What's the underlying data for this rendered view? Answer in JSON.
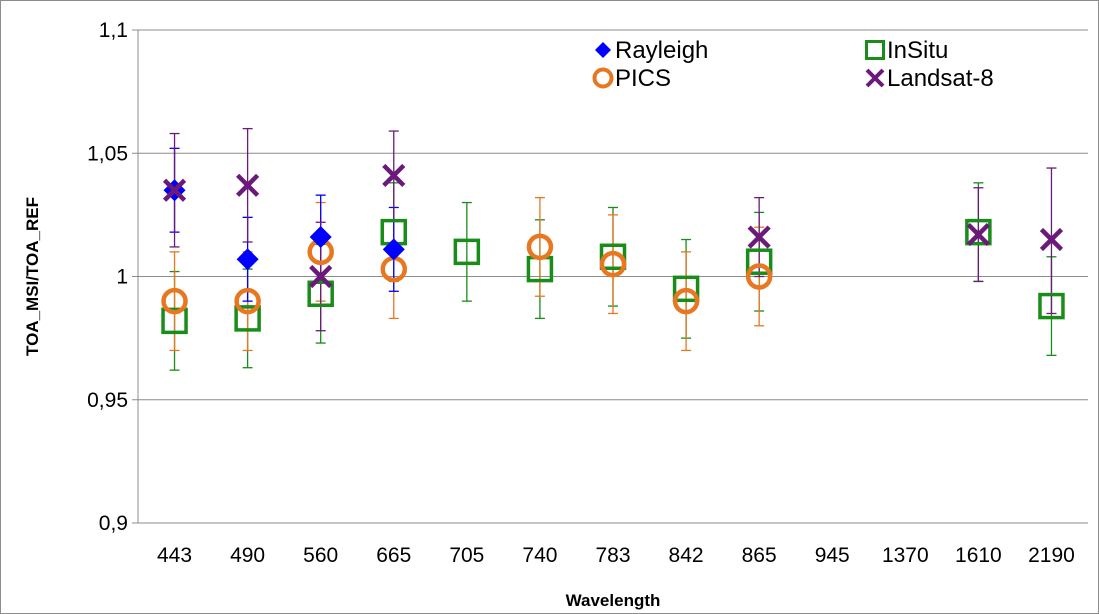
{
  "chart_data": {
    "type": "scatter",
    "xlabel": "Wavelength",
    "ylabel": "TOA_MSI/TOA_REF",
    "categories": [
      "443",
      "490",
      "560",
      "665",
      "705",
      "740",
      "783",
      "842",
      "865",
      "945",
      "1370",
      "1610",
      "2190"
    ],
    "y_ticks": [
      "0,9",
      "0,95",
      "1",
      "1,05",
      "1,1"
    ],
    "y_tick_values": [
      0.9,
      0.95,
      1.0,
      1.05,
      1.1
    ],
    "ylim": [
      0.9,
      1.1
    ],
    "grid": "horizontal",
    "legend_position": "top-right",
    "series": [
      {
        "name": "Rayleigh",
        "marker": "diamond",
        "color": "#0000ff",
        "points": [
          {
            "x": "443",
            "y": 1.035,
            "lo": 1.018,
            "hi": 1.052
          },
          {
            "x": "490",
            "y": 1.007,
            "lo": 0.99,
            "hi": 1.024
          },
          {
            "x": "560",
            "y": 1.016,
            "lo": 0.999,
            "hi": 1.033
          },
          {
            "x": "665",
            "y": 1.011,
            "lo": 0.994,
            "hi": 1.028
          }
        ]
      },
      {
        "name": "PICS",
        "marker": "circle",
        "color": "#e87722",
        "points": [
          {
            "x": "443",
            "y": 0.99,
            "lo": 0.97,
            "hi": 1.01
          },
          {
            "x": "490",
            "y": 0.99,
            "lo": 0.97,
            "hi": 1.01
          },
          {
            "x": "560",
            "y": 1.01,
            "lo": 0.99,
            "hi": 1.03
          },
          {
            "x": "665",
            "y": 1.003,
            "lo": 0.983,
            "hi": 1.023
          },
          {
            "x": "740",
            "y": 1.012,
            "lo": 0.992,
            "hi": 1.032
          },
          {
            "x": "783",
            "y": 1.005,
            "lo": 0.985,
            "hi": 1.025
          },
          {
            "x": "842",
            "y": 0.99,
            "lo": 0.97,
            "hi": 1.01
          },
          {
            "x": "865",
            "y": 1.0,
            "lo": 0.98,
            "hi": 1.02
          }
        ]
      },
      {
        "name": "InSitu",
        "marker": "square",
        "color": "#1a8c1a",
        "points": [
          {
            "x": "443",
            "y": 0.982,
            "lo": 0.962,
            "hi": 1.002
          },
          {
            "x": "490",
            "y": 0.983,
            "lo": 0.963,
            "hi": 1.003
          },
          {
            "x": "560",
            "y": 0.993,
            "lo": 0.973,
            "hi": 1.013
          },
          {
            "x": "665",
            "y": 1.018,
            "lo": 0.998,
            "hi": 1.038
          },
          {
            "x": "705",
            "y": 1.01,
            "lo": 0.99,
            "hi": 1.03
          },
          {
            "x": "740",
            "y": 1.003,
            "lo": 0.983,
            "hi": 1.023
          },
          {
            "x": "783",
            "y": 1.008,
            "lo": 0.988,
            "hi": 1.028
          },
          {
            "x": "842",
            "y": 0.995,
            "lo": 0.975,
            "hi": 1.015
          },
          {
            "x": "865",
            "y": 1.006,
            "lo": 0.986,
            "hi": 1.026
          },
          {
            "x": "1610",
            "y": 1.018,
            "lo": 0.998,
            "hi": 1.038
          },
          {
            "x": "2190",
            "y": 0.988,
            "lo": 0.968,
            "hi": 1.008
          }
        ]
      },
      {
        "name": "Landsat-8",
        "marker": "x",
        "color": "#6b1a7a",
        "points": [
          {
            "x": "443",
            "y": 1.035,
            "lo": 1.012,
            "hi": 1.058
          },
          {
            "x": "490",
            "y": 1.037,
            "lo": 1.014,
            "hi": 1.06
          },
          {
            "x": "560",
            "y": 1.0,
            "lo": 0.978,
            "hi": 1.022
          },
          {
            "x": "665",
            "y": 1.041,
            "lo": 1.023,
            "hi": 1.059
          },
          {
            "x": "865",
            "y": 1.016,
            "lo": 1.0,
            "hi": 1.032
          },
          {
            "x": "1610",
            "y": 1.017,
            "lo": 0.998,
            "hi": 1.036
          },
          {
            "x": "2190",
            "y": 1.015,
            "lo": 0.985,
            "hi": 1.044
          }
        ]
      }
    ]
  }
}
